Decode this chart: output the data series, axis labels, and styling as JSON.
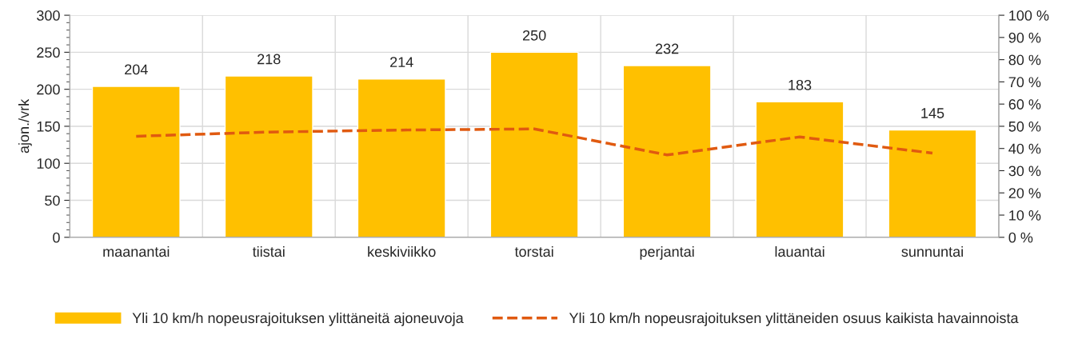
{
  "chart_data": {
    "type": "bar",
    "ylabel": "ajon./vrk",
    "categories": [
      "maanantai",
      "tiistai",
      "keskiviikko",
      "torstai",
      "perjantai",
      "lauantai",
      "sunnuntai"
    ],
    "series": [
      {
        "name": "Yli 10 km/h nopeusrajoituksen ylittäneitä ajoneuvoja",
        "color": "#ffc000",
        "values": [
          204,
          218,
          214,
          250,
          232,
          183,
          145
        ],
        "value_labels": [
          "204",
          "218",
          "214",
          "250",
          "232",
          "183",
          "145"
        ]
      },
      {
        "name": "Yli 10 km/h nopeusrajoituksen ylittäneiden osuus kaikista havainnoista",
        "type": "line",
        "axis": "y2",
        "color": "#e05a10",
        "line_style": "dashed",
        "values": [
          45.5,
          47.4,
          48.3,
          48.8,
          37.1,
          45.2,
          37.9
        ]
      }
    ],
    "ylim": [
      0,
      300
    ],
    "yticks": [
      0,
      50,
      100,
      150,
      200,
      250,
      300
    ],
    "y2lim": [
      0,
      100
    ],
    "y2ticks": [
      {
        "value": 0,
        "label": "0 %"
      },
      {
        "value": 10,
        "label": "10 %"
      },
      {
        "value": 20,
        "label": "20 %"
      },
      {
        "value": 30,
        "label": "30 %"
      },
      {
        "value": 40,
        "label": "40 %"
      },
      {
        "value": 50,
        "label": "50 %"
      },
      {
        "value": 60,
        "label": "60 %"
      },
      {
        "value": 70,
        "label": "70 %"
      },
      {
        "value": 80,
        "label": "80 %"
      },
      {
        "value": 90,
        "label": "90 %"
      },
      {
        "value": 100,
        "label": "100 %"
      }
    ],
    "grid": true,
    "legend": "bottom",
    "marker": "none"
  }
}
